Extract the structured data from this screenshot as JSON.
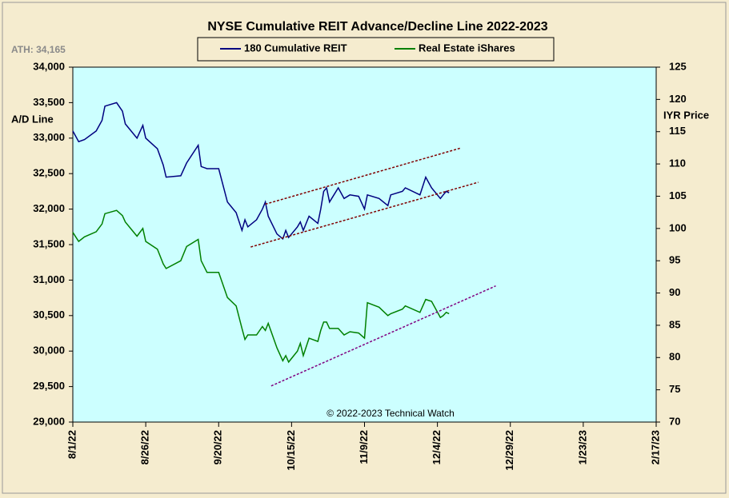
{
  "chart_data": {
    "type": "line",
    "title": "NYSE Cumulative  REIT Advance/Decline  Line 2022-2023",
    "annotations": {
      "ath": "ATH: 34,165",
      "copyright": "© 2022-2023  Technical  Watch"
    },
    "ylabel": "A/D Line",
    "y2label": "IYR Price",
    "x": [
      "2022-08-01",
      "2022-08-03",
      "2022-08-05",
      "2022-08-09",
      "2022-08-11",
      "2022-08-12",
      "2022-08-16",
      "2022-08-18",
      "2022-08-19",
      "2022-08-23",
      "2022-08-25",
      "2022-08-26",
      "2022-08-30",
      "2022-09-01",
      "2022-09-02",
      "2022-09-07",
      "2022-09-09",
      "2022-09-13",
      "2022-09-14",
      "2022-09-16",
      "2022-09-20",
      "2022-09-23",
      "2022-09-26",
      "2022-09-28",
      "2022-09-29",
      "2022-09-30",
      "2022-10-03",
      "2022-10-05",
      "2022-10-06",
      "2022-10-07",
      "2022-10-10",
      "2022-10-12",
      "2022-10-13",
      "2022-10-14",
      "2022-10-17",
      "2022-10-18",
      "2022-10-19",
      "2022-10-21",
      "2022-10-24",
      "2022-10-25",
      "2022-10-26",
      "2022-10-27",
      "2022-10-28",
      "2022-10-31",
      "2022-11-02",
      "2022-11-04",
      "2022-11-07",
      "2022-11-09",
      "2022-11-10",
      "2022-11-14",
      "2022-11-17",
      "2022-11-18",
      "2022-11-22",
      "2022-11-23",
      "2022-11-28",
      "2022-11-30",
      "2022-12-02",
      "2022-12-05",
      "2022-12-06",
      "2022-12-07",
      "2022-12-08"
    ],
    "series": [
      {
        "name": "180 Cumulative REIT",
        "color": "#000080",
        "axis": "y",
        "values": [
          33100,
          32950,
          32980,
          33100,
          33250,
          33450,
          33500,
          33380,
          33200,
          33000,
          33180,
          33000,
          32850,
          32620,
          32450,
          32470,
          32650,
          32900,
          32600,
          32570,
          32570,
          32100,
          31950,
          31700,
          31850,
          31750,
          31850,
          32000,
          32100,
          31900,
          31650,
          31580,
          31700,
          31600,
          31750,
          31820,
          31700,
          31900,
          31800,
          32000,
          32250,
          32300,
          32100,
          32300,
          32150,
          32200,
          32180,
          32000,
          32200,
          32150,
          32050,
          32200,
          32250,
          32300,
          32200,
          32450,
          32300,
          32150,
          32200,
          32250,
          32230
        ]
      },
      {
        "name": "Real Estate iShares",
        "color": "#008000",
        "axis": "y2",
        "values": [
          99.4,
          98.0,
          98.7,
          99.5,
          100.7,
          102.3,
          102.8,
          102.0,
          101.0,
          98.8,
          100.0,
          98.0,
          96.8,
          94.5,
          93.8,
          95.0,
          97.2,
          98.3,
          95.0,
          93.2,
          93.2,
          89.3,
          88.0,
          84.5,
          82.8,
          83.5,
          83.5,
          84.8,
          84.2,
          85.3,
          81.5,
          79.5,
          80.3,
          79.3,
          81.0,
          82.2,
          80.3,
          83.0,
          82.5,
          84.2,
          85.5,
          85.5,
          84.5,
          84.5,
          83.5,
          84.0,
          83.8,
          83.0,
          88.5,
          87.8,
          86.5,
          86.8,
          87.5,
          88.0,
          87.0,
          89.0,
          88.7,
          86.2,
          86.5,
          87.0,
          86.8
        ]
      }
    ],
    "trendlines": [
      {
        "color": "#800000",
        "axis": "y",
        "x": [
          "2022-10-06",
          "2022-12-12"
        ],
        "values": [
          32070,
          32860
        ]
      },
      {
        "color": "#800000",
        "axis": "y",
        "x": [
          "2022-10-01",
          "2022-12-18"
        ],
        "values": [
          31466,
          32378
        ]
      },
      {
        "color": "#800080",
        "axis": "y2",
        "x": [
          "2022-10-08",
          "2022-12-24"
        ],
        "values": [
          75.6,
          91.1
        ]
      }
    ],
    "xlim": [
      "2022-08-01",
      "2023-02-17"
    ],
    "xticks": [
      {
        "value": "2022-08-01",
        "label": "8/1/22"
      },
      {
        "value": "2022-08-26",
        "label": "8/26/22"
      },
      {
        "value": "2022-09-20",
        "label": "9/20/22"
      },
      {
        "value": "2022-10-15",
        "label": "10/15/22"
      },
      {
        "value": "2022-11-09",
        "label": "11/9/22"
      },
      {
        "value": "2022-12-04",
        "label": "12/4/22"
      },
      {
        "value": "2022-12-29",
        "label": "12/29/22"
      },
      {
        "value": "2023-01-23",
        "label": "1/23/23"
      },
      {
        "value": "2023-02-17",
        "label": "2/17/23"
      }
    ],
    "ylim": [
      29000,
      34000
    ],
    "yticks": [
      {
        "value": 29000,
        "label": "29,000"
      },
      {
        "value": 29500,
        "label": "29,500"
      },
      {
        "value": 30000,
        "label": "30,000"
      },
      {
        "value": 30500,
        "label": "30,500"
      },
      {
        "value": 31000,
        "label": "31,000"
      },
      {
        "value": 31500,
        "label": "31,500"
      },
      {
        "value": 32000,
        "label": "32,000"
      },
      {
        "value": 32500,
        "label": "32,500"
      },
      {
        "value": 33000,
        "label": "33,000"
      },
      {
        "value": 33500,
        "label": "33,500"
      },
      {
        "value": 34000,
        "label": "34,000"
      }
    ],
    "y2lim": [
      70,
      125
    ],
    "y2ticks": [
      70,
      75,
      80,
      85,
      90,
      95,
      100,
      105,
      110,
      115,
      120,
      125
    ],
    "plot_background": "#ccffff"
  }
}
